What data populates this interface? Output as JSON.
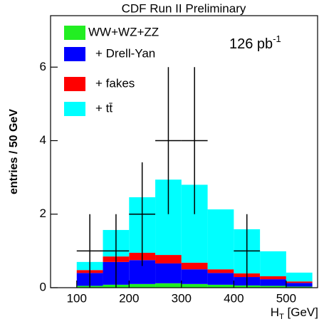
{
  "chart_data": {
    "type": "stacked_histogram",
    "title": "CDF Run II Preliminary",
    "y_label": "entries / 50 GeV",
    "x_label": [
      "H",
      "T",
      " [GeV]"
    ],
    "annotation": [
      "126 pb",
      "-1"
    ],
    "bins": [
      100,
      150,
      200,
      250,
      300,
      350,
      400,
      450,
      500,
      550
    ],
    "series": [
      {
        "name": "WW+WZ+ZZ",
        "color": "#22ee22",
        "values": [
          0.05,
          0.08,
          0.1,
          0.12,
          0.1,
          0.08,
          0.06,
          0.05,
          0.03
        ]
      },
      {
        "name": "+ Drell-Yan",
        "color": "#0000ff",
        "values": [
          0.35,
          0.62,
          0.65,
          0.54,
          0.4,
          0.32,
          0.23,
          0.18,
          0.1
        ]
      },
      {
        "name": "+ fakes",
        "color": "#ff0000",
        "values": [
          0.08,
          0.15,
          0.2,
          0.23,
          0.18,
          0.1,
          0.1,
          0.08,
          0.04
        ]
      },
      {
        "name": "+ tt̄",
        "color": "#00ffff",
        "values": [
          0.22,
          0.72,
          1.51,
          2.05,
          2.12,
          1.63,
          1.2,
          0.68,
          0.24
        ]
      }
    ],
    "data_points": {
      "x": [
        125,
        175,
        225,
        275,
        325,
        425
      ],
      "xerr": [
        25,
        25,
        25,
        25,
        25,
        25
      ],
      "values": [
        1,
        1,
        2,
        4,
        4,
        1
      ],
      "yerr": [
        1,
        1,
        1.41,
        2,
        2,
        1
      ]
    },
    "xlim": [
      50,
      560
    ],
    "ylim": [
      0,
      7.4
    ],
    "xticks": [
      100,
      200,
      300,
      400,
      500
    ],
    "yticks": [
      0,
      2,
      4,
      6
    ]
  }
}
